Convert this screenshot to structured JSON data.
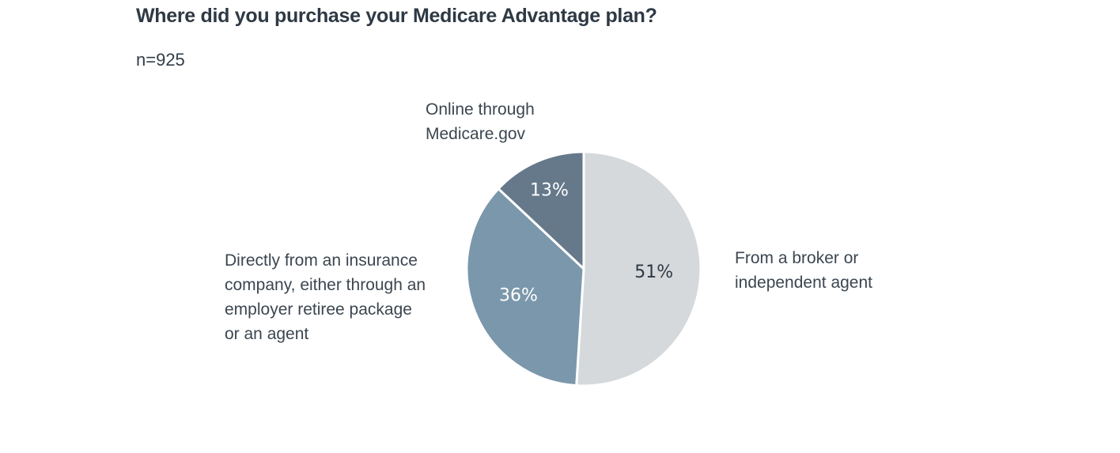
{
  "chart_data": {
    "type": "pie",
    "title": "Where did you purchase your Medicare Advantage plan?",
    "subtitle": "n=925",
    "slices": [
      {
        "label": "From a broker or\nindependent agent",
        "value": 51,
        "display": "51%",
        "color": "#d5d9db",
        "text_color": "#2e3944"
      },
      {
        "label": "Directly from an insurance\ncompany, either through an\nemployer retiree package\nor an agent",
        "value": 36,
        "display": "36%",
        "color": "#7b97ab",
        "text_color": "#ffffff"
      },
      {
        "label": "Online through\nMedicare.gov",
        "value": 13,
        "display": "13%",
        "color": "#66798b",
        "text_color": "#ffffff"
      }
    ],
    "start": "12 o'clock",
    "direction": "clockwise"
  }
}
